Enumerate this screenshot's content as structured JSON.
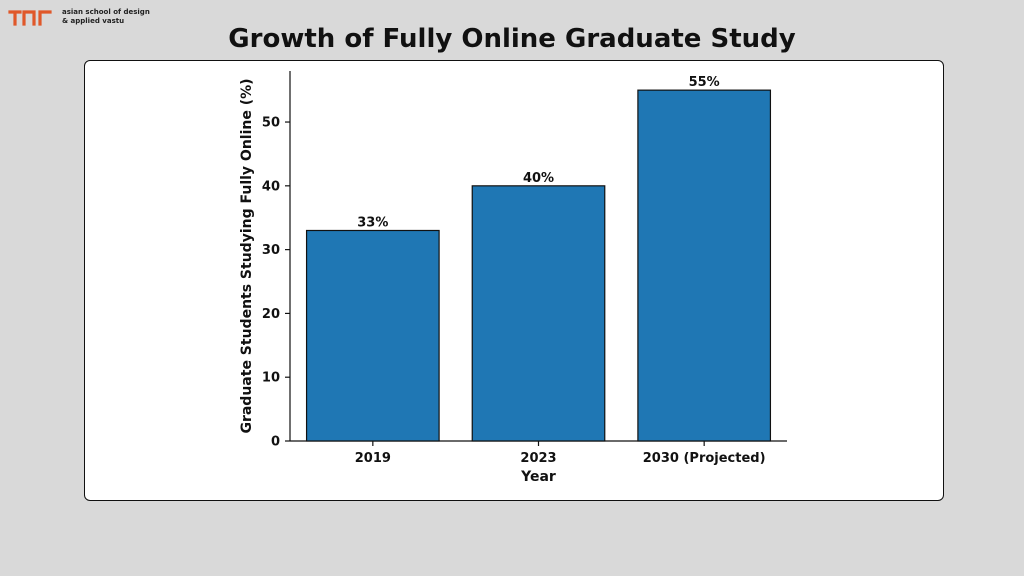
{
  "logo": {
    "name": "asian school of design",
    "tagline": "& applied vastu",
    "mark_color": "#e0582a"
  },
  "page_title": "Growth of Fully Online Graduate Study",
  "chart_data": {
    "type": "bar",
    "title": "Growth of Fully Online Graduate Study",
    "categories": [
      "2019",
      "2023",
      "2030 (Projected)"
    ],
    "values": [
      33,
      40,
      55
    ],
    "data_labels": [
      "33%",
      "40%",
      "55%"
    ],
    "xlabel": "Year",
    "ylabel": "Graduate Students Studying Fully Online (%)",
    "ylim": [
      0,
      58
    ],
    "yticks": [
      0,
      10,
      20,
      30,
      40,
      50
    ],
    "grid": false,
    "bar_color": "#1f77b4",
    "edge_color": "#111111"
  }
}
